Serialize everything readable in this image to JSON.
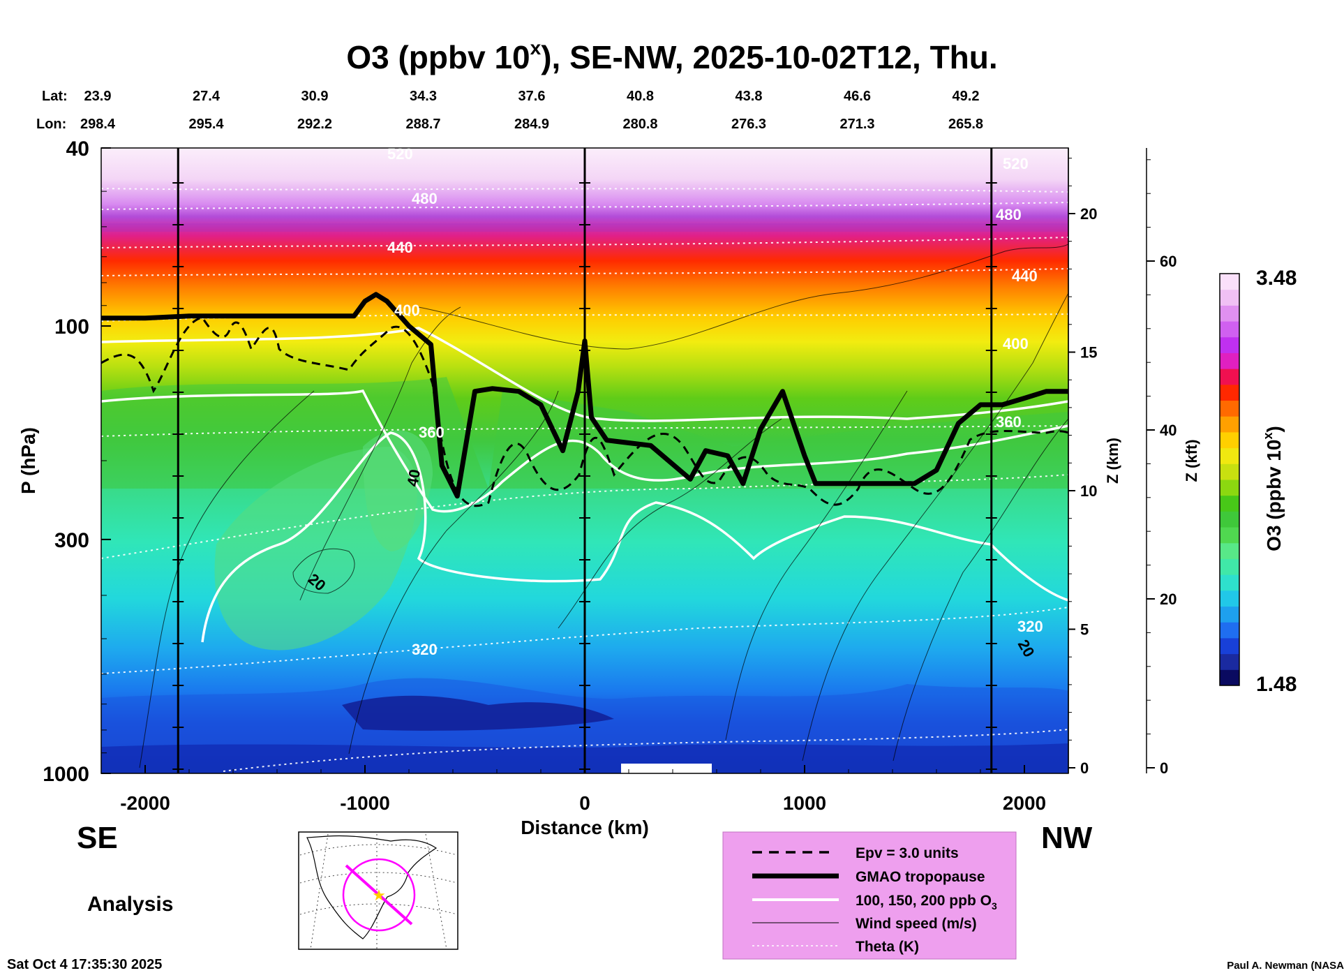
{
  "chart_data": {
    "type": "heatmap",
    "title": "O3 (ppbv 10",
    "title_sup": "x",
    "title_rest": "), SE-NW, 2025-10-02T12, Thu.",
    "lat_label": "Lat:",
    "lon_label": "Lon:",
    "lats": [
      "23.9",
      "27.4",
      "30.9",
      "34.3",
      "37.6",
      "40.8",
      "43.8",
      "46.6",
      "49.2"
    ],
    "lons": [
      "298.4",
      "295.4",
      "292.2",
      "288.7",
      "284.9",
      "280.8",
      "276.3",
      "271.3",
      "265.8"
    ],
    "xlabel": "Distance (km)",
    "xlim": [
      -2200,
      2200
    ],
    "xticks": [
      "-2000",
      "-1000",
      "0",
      "1000",
      "2000"
    ],
    "xtick_values": [
      -2000,
      -1000,
      0,
      1000,
      2000
    ],
    "ylabel": "P (hPa)",
    "ylim": [
      1000,
      40
    ],
    "yticks": [
      "40",
      "100",
      "300",
      "1000"
    ],
    "ytick_values": [
      40,
      100,
      300,
      1000
    ],
    "z_label": "Z (km)",
    "z_ticks": [
      "20",
      "15",
      "10",
      "5",
      "0"
    ],
    "z_tick_values": [
      20,
      15,
      10,
      5,
      0
    ],
    "zkft_label": "Z (kft)",
    "zkft_ticks": [
      "60",
      "40",
      "20",
      "0"
    ],
    "zkft_tick_values": [
      60,
      40,
      20,
      0
    ],
    "colorbar_label": "O3 (ppbv 10",
    "colorbar_label_sup": "x",
    "colorbar_label_end": ")",
    "colorbar_max": "3.48",
    "colorbar_min": "1.48",
    "colorbar_colors": [
      "#0a0a60",
      "#1a2aa0",
      "#1840d8",
      "#1f6ef0",
      "#1ea0ee",
      "#21c8e8",
      "#2ee0cc",
      "#40e8a8",
      "#58e888",
      "#50d850",
      "#3fc83a",
      "#48c818",
      "#8cd810",
      "#c8e010",
      "#f0e810",
      "#ffd000",
      "#ffa000",
      "#ff6a00",
      "#ff2800",
      "#f01050",
      "#e020c0",
      "#c030f0",
      "#d060f0",
      "#e090f0",
      "#f0c0f4",
      "#fae0fa"
    ],
    "theta_labels": [
      "520",
      "480",
      "440",
      "400",
      "360",
      "320"
    ],
    "wind_labels": [
      "40",
      "20",
      "20"
    ],
    "tropopause_km": [
      [
        -2200,
        96
      ],
      [
        -2000,
        96
      ],
      [
        -1800,
        95
      ],
      [
        -1600,
        95
      ],
      [
        -1300,
        95
      ],
      [
        -1050,
        95
      ],
      [
        -1000,
        88
      ],
      [
        -950,
        85
      ],
      [
        -900,
        88
      ],
      [
        -800,
        100
      ],
      [
        -700,
        110
      ],
      [
        -650,
        205
      ],
      [
        -580,
        240
      ],
      [
        -500,
        140
      ],
      [
        -420,
        138
      ],
      [
        -300,
        140
      ],
      [
        -200,
        150
      ],
      [
        -100,
        190
      ],
      [
        -30,
        140
      ],
      [
        0,
        108
      ],
      [
        30,
        160
      ],
      [
        100,
        180
      ],
      [
        300,
        185
      ],
      [
        480,
        220
      ],
      [
        550,
        190
      ],
      [
        650,
        195
      ],
      [
        720,
        225
      ],
      [
        800,
        170
      ],
      [
        900,
        140
      ],
      [
        1000,
        195
      ],
      [
        1050,
        225
      ],
      [
        1300,
        225
      ],
      [
        1500,
        225
      ],
      [
        1600,
        210
      ],
      [
        1700,
        165
      ],
      [
        1800,
        150
      ],
      [
        1900,
        150
      ],
      [
        2000,
        145
      ],
      [
        2100,
        140
      ],
      [
        2200,
        140
      ]
    ],
    "vertical_markers_km": [
      -1850,
      0,
      1850
    ],
    "legend": [
      {
        "label": "Epv = 3.0 units",
        "style": "dashed"
      },
      {
        "label": "GMAO tropopause",
        "style": "thick"
      },
      {
        "label": "100, 150, 200 ppb O",
        "label_sub": "3",
        "style": "white"
      },
      {
        "label": "Wind speed (m/s)",
        "style": "thin"
      },
      {
        "label": "Theta (K)",
        "style": "dotted"
      }
    ],
    "left_dir": "SE",
    "right_dir": "NW",
    "mode": "Analysis"
  },
  "footer_left": "Sat Oct  4 17:35:30 2025",
  "footer_right": "Paul A. Newman (NASA",
  "colors": {
    "legend_bg": "#ee9fee",
    "map_line": "#ff00ff",
    "star": "#ffcc00"
  }
}
